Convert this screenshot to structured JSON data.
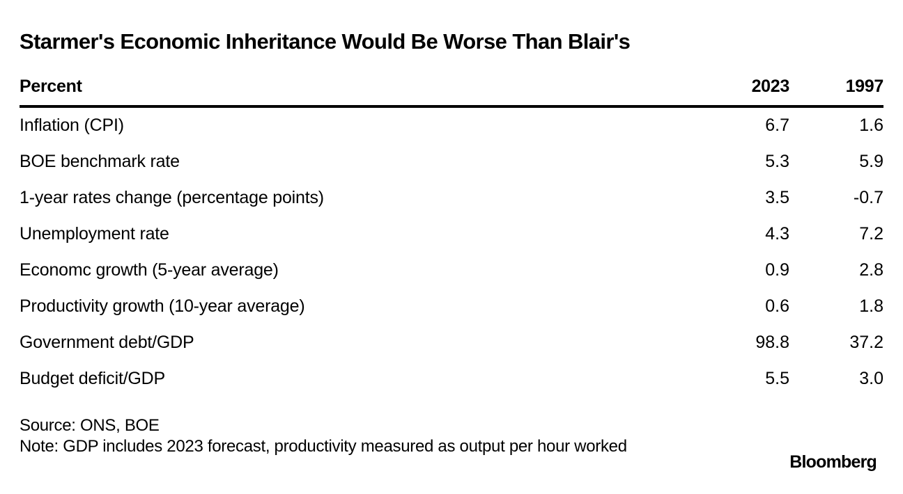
{
  "chart_data": {
    "type": "table",
    "title": "Starmer's Economic Inheritance Would Be Worse Than Blair's",
    "unit_header": "Percent",
    "columns": [
      "2023",
      "1997"
    ],
    "rows": [
      {
        "label": "Inflation (CPI)",
        "values": [
          "6.7",
          "1.6"
        ]
      },
      {
        "label": "BOE benchmark rate",
        "values": [
          "5.3",
          "5.9"
        ]
      },
      {
        "label": "1-year rates change (percentage points)",
        "values": [
          "3.5",
          "-0.7"
        ]
      },
      {
        "label": "Unemployment rate",
        "values": [
          "4.3",
          "7.2"
        ]
      },
      {
        "label": "Economc growth (5-year average)",
        "values": [
          "0.9",
          "2.8"
        ]
      },
      {
        "label": "Productivity growth (10-year average)",
        "values": [
          "0.6",
          "1.8"
        ]
      },
      {
        "label": "Government debt/GDP",
        "values": [
          "98.8",
          "37.2"
        ]
      },
      {
        "label": "Budget deficit/GDP",
        "values": [
          "5.5",
          "3.0"
        ]
      }
    ],
    "source": "Source: ONS, BOE",
    "note": "Note: GDP includes 2023 forecast, productivity measured as output per hour worked"
  },
  "brand": "Bloomberg"
}
